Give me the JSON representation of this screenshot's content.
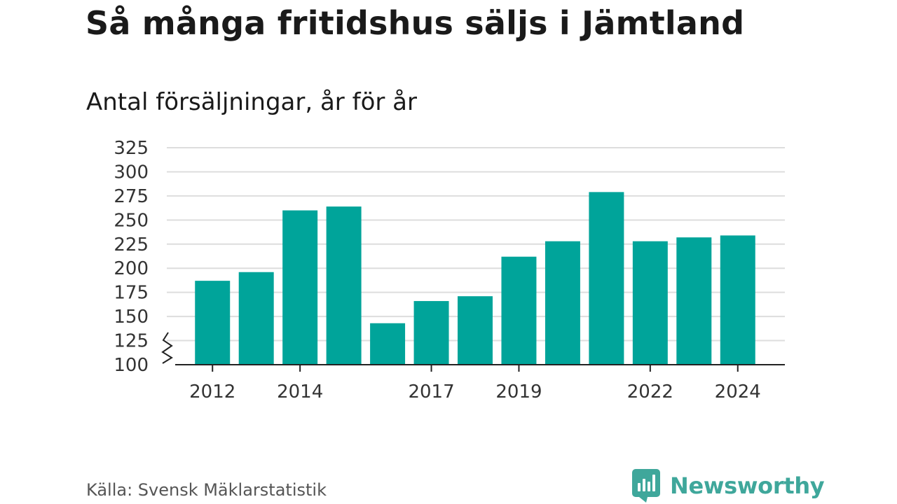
{
  "header": {
    "title": "Så många fritidshus säljs i Jämtland",
    "subtitle": "Antal försäljningar, år för år"
  },
  "footer": {
    "source": "Källa: Svensk Mäklarstatistik",
    "brand_name": "Newsworthy",
    "brand_color": "#3fa79b"
  },
  "chart_data": {
    "type": "bar",
    "categories": [
      "2012",
      "2013",
      "2014",
      "2015",
      "2016",
      "2017",
      "2018",
      "2019",
      "2020",
      "2021",
      "2022",
      "2023",
      "2024"
    ],
    "values": [
      187,
      196,
      260,
      264,
      143,
      166,
      171,
      212,
      228,
      279,
      228,
      232,
      234
    ],
    "x_tick_labels": [
      "2012",
      "2014",
      "2017",
      "2019",
      "2022",
      "2024"
    ],
    "y_ticks": [
      100,
      125,
      150,
      175,
      200,
      225,
      250,
      275,
      300,
      325
    ],
    "ylim": [
      100,
      325
    ],
    "y_axis_break": true,
    "grid": true,
    "bar_color": "#00a49a",
    "grid_color": "#dddddd",
    "axis_color": "#222222"
  }
}
